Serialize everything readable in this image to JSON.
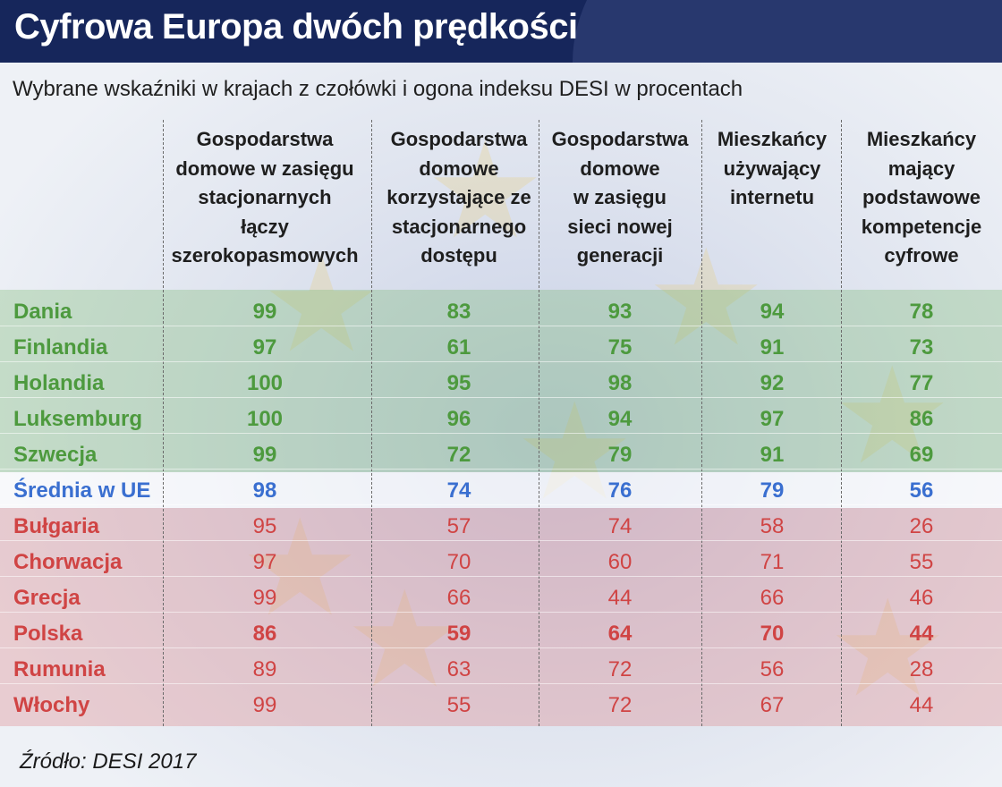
{
  "header": {
    "title": "Cyfrowa Europa dwóch prędkości",
    "subtitle": "Wybrane wskaźniki w krajach z czołówki i ogona indeksu DESI w procentach"
  },
  "source": "Źródło: DESI 2017",
  "colors": {
    "header_bg": "#16265b",
    "top_group": "#4d9a3e",
    "average": "#3a6fd0",
    "bottom_group": "#d04444"
  },
  "chart_data": {
    "type": "table",
    "title": "Cyfrowa Europa dwóch prędkości",
    "subtitle": "Wybrane wskaźniki w krajach z czołówki i ogona indeksu DESI w procentach",
    "columns": [
      [
        "Gospodarstwa",
        "domowe w zasięgu",
        "stacjonarnych",
        "łączy",
        "szerokopasmowych"
      ],
      [
        "Gospodarstwa",
        "domowe",
        "korzystające ze",
        "stacjonarnego",
        "dostępu"
      ],
      [
        "Gospodarstwa",
        "domowe",
        "w zasięgu",
        "sieci nowej",
        "generacji"
      ],
      [
        "Mieszkańcy",
        "używający",
        "internetu"
      ],
      [
        "Mieszkańcy",
        "mający",
        "podstawowe",
        "kompetencje",
        "cyfrowe"
      ]
    ],
    "rows": [
      {
        "label": "Dania",
        "group": "top",
        "values": [
          99,
          83,
          93,
          94,
          78
        ]
      },
      {
        "label": "Finlandia",
        "group": "top",
        "values": [
          97,
          61,
          75,
          91,
          73
        ]
      },
      {
        "label": "Holandia",
        "group": "top",
        "values": [
          100,
          95,
          98,
          92,
          77
        ]
      },
      {
        "label": "Luksemburg",
        "group": "top",
        "values": [
          100,
          96,
          94,
          97,
          86
        ]
      },
      {
        "label": "Szwecja",
        "group": "top",
        "values": [
          99,
          72,
          79,
          91,
          69
        ]
      },
      {
        "label": "Średnia w UE",
        "group": "avg",
        "values": [
          98,
          74,
          76,
          79,
          56
        ]
      },
      {
        "label": "Bułgaria",
        "group": "bottom",
        "values": [
          95,
          57,
          74,
          58,
          26
        ]
      },
      {
        "label": "Chorwacja",
        "group": "bottom",
        "values": [
          97,
          70,
          60,
          71,
          55
        ]
      },
      {
        "label": "Grecja",
        "group": "bottom",
        "values": [
          99,
          66,
          44,
          66,
          46
        ]
      },
      {
        "label": "Polska",
        "group": "bottom",
        "highlight": true,
        "values": [
          86,
          59,
          64,
          70,
          44
        ]
      },
      {
        "label": "Rumunia",
        "group": "bottom",
        "values": [
          89,
          63,
          72,
          56,
          28
        ]
      },
      {
        "label": "Włochy",
        "group": "bottom",
        "values": [
          99,
          55,
          72,
          67,
          44
        ]
      }
    ]
  }
}
